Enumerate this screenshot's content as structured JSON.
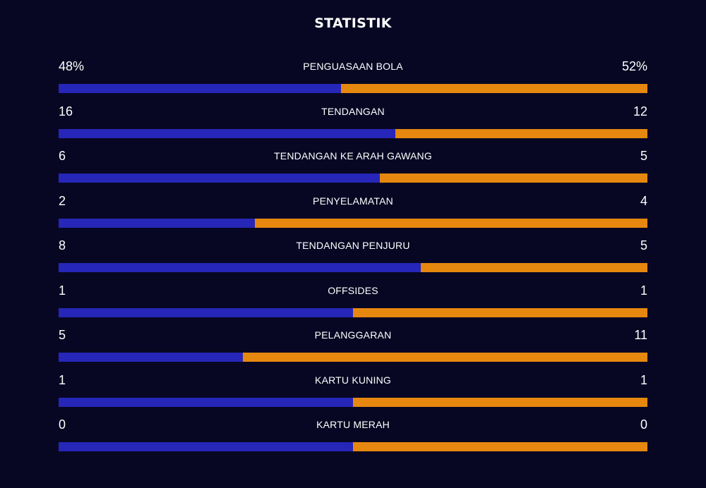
{
  "header": {
    "title": "STATISTIK"
  },
  "colors": {
    "home": "#2626b8",
    "away": "#e6880f"
  },
  "stats": [
    {
      "label": "PENGUASAAN BOLA",
      "home": "48%",
      "away": "52%",
      "home_share": 0.48
    },
    {
      "label": "TENDANGAN",
      "home": "16",
      "away": "12",
      "home_share": 0.5714
    },
    {
      "label": "TENDANGAN KE ARAH GAWANG",
      "home": "6",
      "away": "5",
      "home_share": 0.5455
    },
    {
      "label": "PENYELAMATAN",
      "home": "2",
      "away": "4",
      "home_share": 0.3333
    },
    {
      "label": "TENDANGAN PENJURU",
      "home": "8",
      "away": "5",
      "home_share": 0.6154
    },
    {
      "label": "OFFSIDES",
      "home": "1",
      "away": "1",
      "home_share": 0.5
    },
    {
      "label": "PELANGGARAN",
      "home": "5",
      "away": "11",
      "home_share": 0.3125
    },
    {
      "label": "KARTU KUNING",
      "home": "1",
      "away": "1",
      "home_share": 0.5
    },
    {
      "label": "KARTU MERAH",
      "home": "0",
      "away": "0",
      "home_share": 0.5
    }
  ]
}
